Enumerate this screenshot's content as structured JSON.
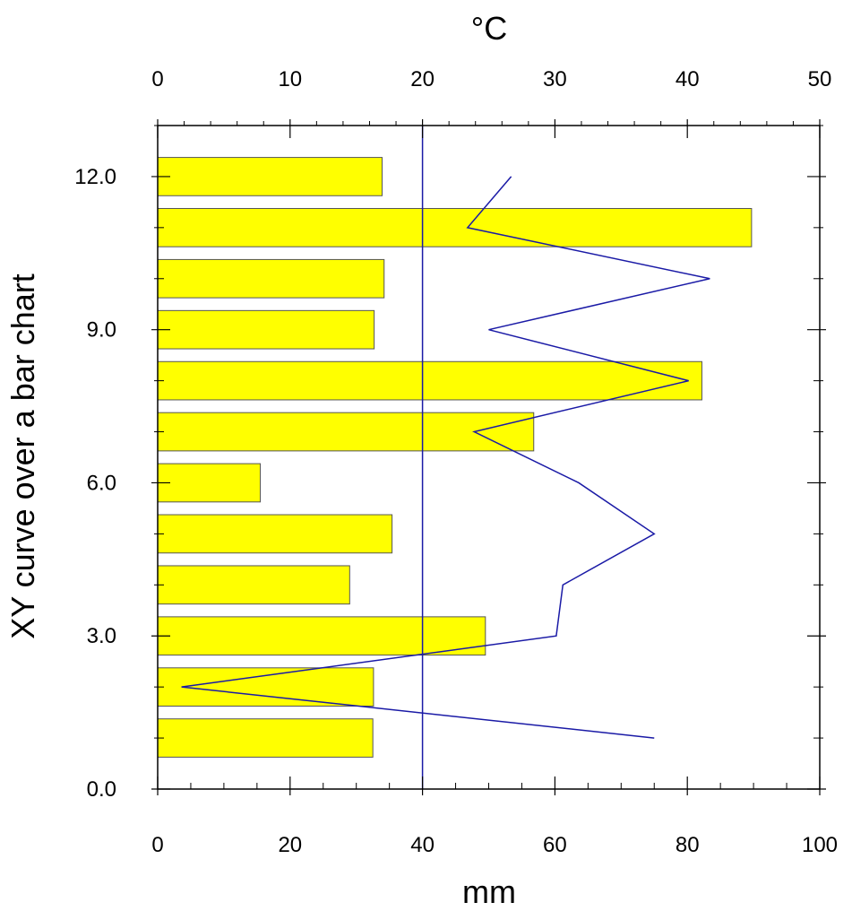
{
  "chart_data": {
    "type": "bar",
    "orientation": "horizontal",
    "ylabel": "XY curve over a bar chart",
    "xlabel": "mm",
    "x2label": "°C",
    "xlim": [
      0,
      100
    ],
    "x2lim": [
      0,
      50
    ],
    "ylim": [
      0,
      13
    ],
    "y_ticks": [
      "0.0",
      "3.0",
      "6.0",
      "9.0",
      "12.0"
    ],
    "x_ticks": [
      "0",
      "20",
      "40",
      "60",
      "80",
      "100"
    ],
    "x2_ticks": [
      "0",
      "10",
      "20",
      "30",
      "40",
      "50"
    ],
    "grid": false,
    "legend": "none",
    "bar_color": "#ffff00",
    "bar_edge_color": "#555555",
    "bars": [
      {
        "y": 1,
        "value": 32.5
      },
      {
        "y": 2,
        "value": 32.6
      },
      {
        "y": 3,
        "value": 49.5
      },
      {
        "y": 4,
        "value": 29
      },
      {
        "y": 5,
        "value": 35.4
      },
      {
        "y": 6,
        "value": 15.5
      },
      {
        "y": 7,
        "value": 56.8
      },
      {
        "y": 8,
        "value": 82.2
      },
      {
        "y": 9,
        "value": 32.7
      },
      {
        "y": 10,
        "value": 34.2
      },
      {
        "y": 11,
        "value": 89.7
      },
      {
        "y": 12,
        "value": 33.9
      }
    ],
    "curve": {
      "axis": "top",
      "color": "#1a1aa6",
      "points": [
        {
          "y": 1,
          "value": 37.5
        },
        {
          "y": 2,
          "value": 1.8
        },
        {
          "y": 3,
          "value": 30.1
        },
        {
          "y": 4,
          "value": 30.6
        },
        {
          "y": 5,
          "value": 37.5
        },
        {
          "y": 6,
          "value": 31.8
        },
        {
          "y": 7,
          "value": 23.9
        },
        {
          "y": 8,
          "value": 40.1
        },
        {
          "y": 9,
          "value": 25
        },
        {
          "y": 10,
          "value": 41.7
        },
        {
          "y": 11,
          "value": 23.4
        },
        {
          "y": 12,
          "value": 26.7
        }
      ]
    },
    "reference_line": {
      "axis": "bottom",
      "value": 40,
      "color": "#1a1aa6"
    }
  }
}
